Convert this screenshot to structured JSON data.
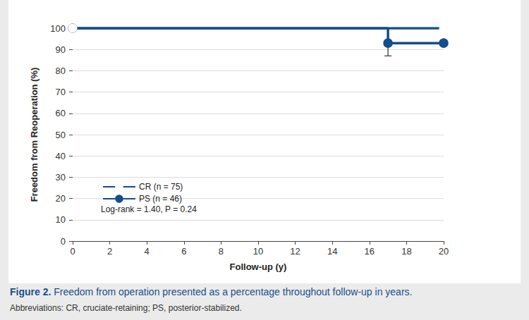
{
  "chart_data": {
    "type": "step",
    "caption": "Figure 2.",
    "caption_text": "Freedom from operation presented as a percentage throughout follow-up in years.",
    "footnote": "Abbreviations: CR, cruciate-retaining; PS, posterior-stabilized.",
    "x_label": "Follow-up (y)",
    "y_label": "Freedom from Reoperation (%)",
    "annotations": [
      "Log-rank = 1.40, P = 0.24"
    ],
    "series": [
      {
        "name": "CR (n = 75)",
        "color": "#134e8d",
        "marker": "open",
        "line_style": "solid",
        "x": [
          0,
          20
        ],
        "values": [
          100,
          100
        ],
        "error_low": [
          null,
          null
        ]
      },
      {
        "name": "PS (n = 46)",
        "color": "#134e8d",
        "marker": "filled",
        "line_style": "solid",
        "x": [
          0,
          17,
          20
        ],
        "values": [
          100,
          93,
          93
        ],
        "error_low": [
          null,
          87,
          null
        ]
      }
    ],
    "xlim": [
      0,
      20
    ],
    "xticks": [
      0,
      2,
      4,
      6,
      8,
      10,
      12,
      14,
      16,
      18,
      20
    ],
    "ylim": [
      0,
      100
    ],
    "yticks": [
      0,
      10,
      20,
      30,
      40,
      50,
      60,
      70,
      80,
      90,
      100
    ],
    "grid": true,
    "legend": "lower left"
  }
}
